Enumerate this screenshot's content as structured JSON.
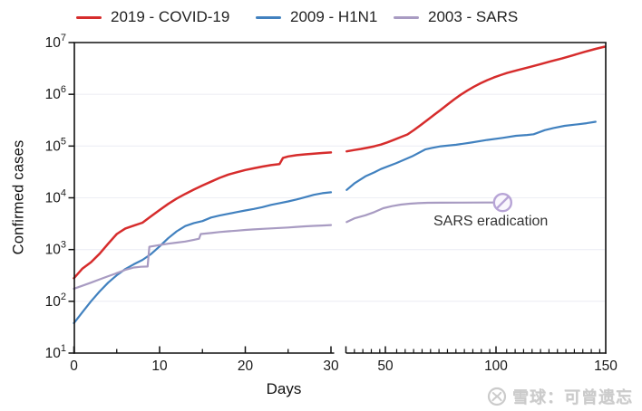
{
  "chart_data": {
    "type": "line",
    "title": "",
    "xlabel": "Days",
    "ylabel": "Confirmed cases",
    "y_scale": "log10",
    "y_tick_exponents": [
      1,
      2,
      3,
      4,
      5,
      6,
      7
    ],
    "ylim_log": [
      1,
      7
    ],
    "x_major_ticks": [
      {
        "day": 0,
        "label": "0"
      },
      {
        "day": 10,
        "label": "10"
      },
      {
        "day": 20,
        "label": "20"
      },
      {
        "day": 30,
        "label": "30"
      },
      {
        "day": 50,
        "label": "50"
      },
      {
        "day": 100,
        "label": "100"
      },
      {
        "day": 150,
        "label": "150"
      }
    ],
    "x_minor_ticks_segment1_days": [
      5,
      15,
      25
    ],
    "x_axis_break": {
      "segment1_end_day": 30.3,
      "segment2_start_day": 32.3
    },
    "grid": "horizontal-decades",
    "legend_position": "top",
    "series": [
      {
        "name": "2019 - COVID-19",
        "color": "#d62c2c",
        "segments": [
          [
            [
              0,
              280
            ],
            [
              1,
              430
            ],
            [
              2,
              570
            ],
            [
              3,
              830
            ],
            [
              4,
              1300
            ],
            [
              5,
              2000
            ],
            [
              6,
              2550
            ],
            [
              7,
              2900
            ],
            [
              8,
              3300
            ],
            [
              9,
              4400
            ],
            [
              10,
              5800
            ],
            [
              11,
              7600
            ],
            [
              12,
              9700
            ],
            [
              13,
              11900
            ],
            [
              14,
              14400
            ],
            [
              15,
              17300
            ],
            [
              16,
              20500
            ],
            [
              17,
              24300
            ],
            [
              18,
              28000
            ],
            [
              19,
              31200
            ],
            [
              20,
              34400
            ],
            [
              21,
              37200
            ],
            [
              22,
              40200
            ],
            [
              23,
              42800
            ],
            [
              24,
              45000
            ],
            [
              24.4,
              59000
            ],
            [
              25,
              63000
            ],
            [
              26,
              66800
            ],
            [
              27,
              69200
            ],
            [
              28,
              71500
            ],
            [
              29,
              73400
            ],
            [
              30,
              75200
            ]
          ],
          [
            [
              32.5,
              79000
            ],
            [
              36,
              84000
            ],
            [
              39,
              88000
            ],
            [
              42,
              93000
            ],
            [
              45,
              99000
            ],
            [
              48,
              107000
            ],
            [
              51,
              118000
            ],
            [
              54,
              133000
            ],
            [
              57,
              149000
            ],
            [
              60,
              168000
            ],
            [
              63,
              205000
            ],
            [
              66,
              255000
            ],
            [
              69,
              320000
            ],
            [
              72,
              400000
            ],
            [
              75,
              500000
            ],
            [
              78,
              630000
            ],
            [
              81,
              790000
            ],
            [
              84,
              980000
            ],
            [
              87,
              1180000
            ],
            [
              90,
              1400000
            ],
            [
              93,
              1630000
            ],
            [
              96,
              1870000
            ],
            [
              99,
              2110000
            ],
            [
              102,
              2350000
            ],
            [
              105,
              2580000
            ],
            [
              110,
              2950000
            ],
            [
              115,
              3350000
            ],
            [
              120,
              3820000
            ],
            [
              125,
              4360000
            ],
            [
              130,
              4970000
            ],
            [
              135,
              5720000
            ],
            [
              140,
              6600000
            ],
            [
              145,
              7550000
            ],
            [
              149,
              8300000
            ]
          ]
        ]
      },
      {
        "name": "2009 - H1N1",
        "color": "#4181bf",
        "segments": [
          [
            [
              0,
              38
            ],
            [
              1,
              62
            ],
            [
              2,
              100
            ],
            [
              3,
              155
            ],
            [
              4,
              230
            ],
            [
              5,
              320
            ],
            [
              6,
              420
            ],
            [
              7,
              520
            ],
            [
              8,
              630
            ],
            [
              9,
              820
            ],
            [
              10,
              1150
            ],
            [
              11,
              1650
            ],
            [
              12,
              2250
            ],
            [
              13,
              2850
            ],
            [
              14,
              3250
            ],
            [
              15,
              3550
            ],
            [
              16,
              4150
            ],
            [
              17,
              4550
            ],
            [
              18,
              4900
            ],
            [
              19,
              5300
            ],
            [
              20,
              5700
            ],
            [
              21,
              6100
            ],
            [
              22,
              6600
            ],
            [
              23,
              7300
            ],
            [
              24,
              7900
            ],
            [
              25,
              8500
            ],
            [
              26,
              9300
            ],
            [
              27,
              10300
            ],
            [
              28,
              11400
            ],
            [
              29,
              12300
            ],
            [
              30,
              12800
            ]
          ],
          [
            [
              32.5,
              14200
            ],
            [
              36,
              19000
            ],
            [
              41,
              26000
            ],
            [
              45,
              31000
            ],
            [
              48,
              36000
            ],
            [
              55,
              47000
            ],
            [
              62,
              63000
            ],
            [
              68,
              86000
            ],
            [
              71,
              92000
            ],
            [
              75,
              99000
            ],
            [
              82,
              106000
            ],
            [
              89,
              117000
            ],
            [
              96,
              131000
            ],
            [
              103,
              144000
            ],
            [
              109,
              158000
            ],
            [
              114,
              164000
            ],
            [
              117,
              169000
            ],
            [
              122,
              203000
            ],
            [
              126,
              223000
            ],
            [
              131,
              246000
            ],
            [
              137,
              263000
            ],
            [
              141,
              276000
            ],
            [
              145,
              295000
            ]
          ]
        ]
      },
      {
        "name": "2003 - SARS",
        "color": "#a89bc2",
        "segments": [
          [
            [
              0,
              175
            ],
            [
              1,
              200
            ],
            [
              2,
              230
            ],
            [
              3,
              265
            ],
            [
              4,
              305
            ],
            [
              5,
              350
            ],
            [
              6,
              405
            ],
            [
              7,
              450
            ],
            [
              7.8,
              465
            ],
            [
              8.6,
              470
            ],
            [
              8.8,
              1130
            ],
            [
              10,
              1220
            ],
            [
              11,
              1300
            ],
            [
              12,
              1360
            ],
            [
              13,
              1430
            ],
            [
              14,
              1540
            ],
            [
              14.6,
              1620
            ],
            [
              14.8,
              2000
            ],
            [
              16,
              2090
            ],
            [
              17,
              2180
            ],
            [
              18,
              2250
            ],
            [
              19,
              2320
            ],
            [
              20,
              2390
            ],
            [
              21,
              2450
            ],
            [
              22,
              2510
            ],
            [
              23,
              2560
            ],
            [
              24,
              2610
            ],
            [
              25,
              2670
            ],
            [
              26,
              2750
            ],
            [
              27,
              2810
            ],
            [
              28,
              2870
            ],
            [
              29,
              2920
            ],
            [
              30,
              2970
            ]
          ],
          [
            [
              32.5,
              3400
            ],
            [
              36,
              4000
            ],
            [
              41,
              4600
            ],
            [
              45,
              5300
            ],
            [
              49,
              6300
            ],
            [
              53,
              6900
            ],
            [
              57,
              7400
            ],
            [
              61,
              7700
            ],
            [
              65,
              7900
            ],
            [
              69,
              8000
            ],
            [
              75,
              8060
            ],
            [
              85,
              8090
            ],
            [
              95,
              8096
            ],
            [
              99,
              8096
            ]
          ]
        ]
      }
    ],
    "annotation": {
      "text": "SARS eradication",
      "marker": "no-entry-circle",
      "marker_day": 103,
      "marker_value": 8100,
      "marker_color": "#b7a4d6"
    }
  },
  "watermark": {
    "logo_icon": "xueqiu-circle-icon",
    "text": "雪球：可曾遗忘"
  },
  "colors": {
    "axis": "#111111",
    "grid": "#edeef4",
    "text": "#1a1a1a",
    "annotation_text": "#333333",
    "watermark": "#cbcbcb"
  }
}
